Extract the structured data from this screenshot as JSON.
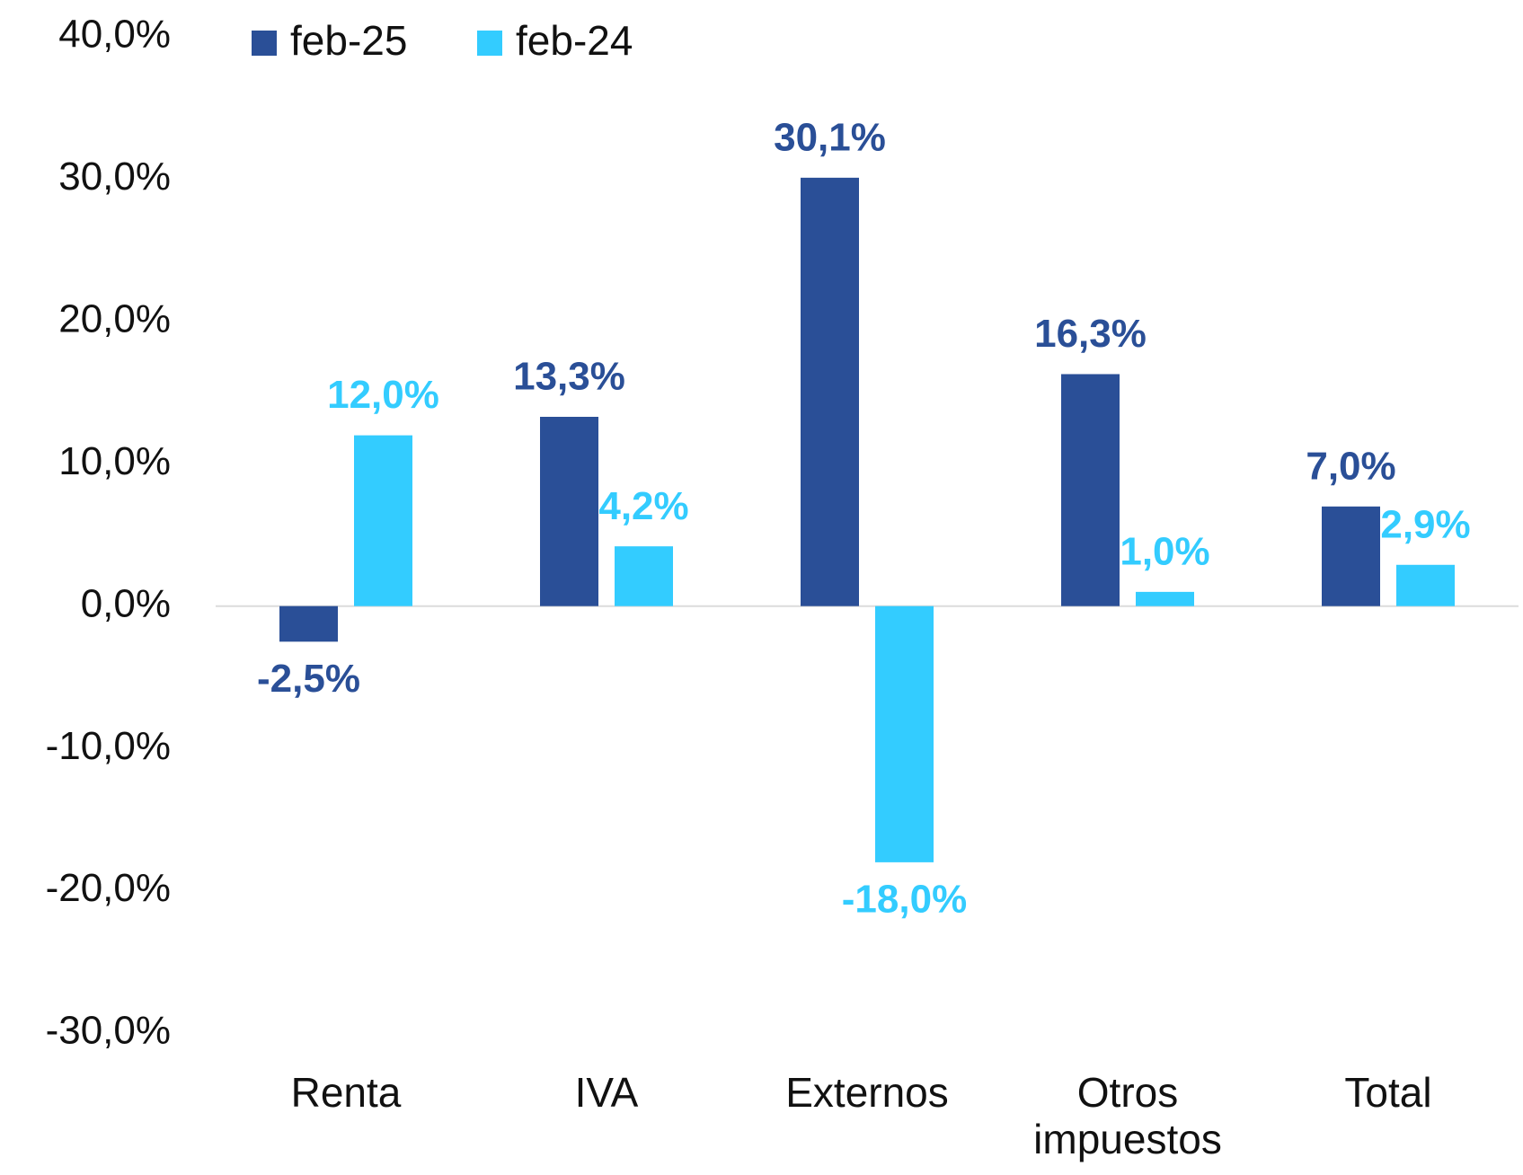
{
  "chart_data": {
    "type": "bar",
    "categories": [
      "Renta",
      "IVA",
      "Externos",
      "Otros impuestos",
      "Total"
    ],
    "series": [
      {
        "name": "feb-25",
        "color": "#2a4f97",
        "values": [
          -2.5,
          13.3,
          30.1,
          16.3,
          7.0
        ],
        "value_labels": [
          "-2,5%",
          "13,3%",
          "30,1%",
          "16,3%",
          "7,0%"
        ]
      },
      {
        "name": "feb-24",
        "color": "#33ccff",
        "values": [
          12.0,
          4.2,
          -18.0,
          1.0,
          2.9
        ],
        "value_labels": [
          "12,0%",
          "4,2%",
          "-18,0%",
          "1,0%",
          "2,9%"
        ]
      }
    ],
    "ylim": [
      -30,
      40
    ],
    "yticks": [
      {
        "value": -30,
        "label": "-30,0%"
      },
      {
        "value": -20,
        "label": "-20,0%"
      },
      {
        "value": -10,
        "label": "-10,0%"
      },
      {
        "value": 0,
        "label": "0,0%"
      },
      {
        "value": 10,
        "label": "10,0%"
      },
      {
        "value": 20,
        "label": "20,0%"
      },
      {
        "value": 30,
        "label": "30,0%"
      },
      {
        "value": 40,
        "label": "40,0%"
      }
    ],
    "legend": "top-left",
    "grid": false
  }
}
